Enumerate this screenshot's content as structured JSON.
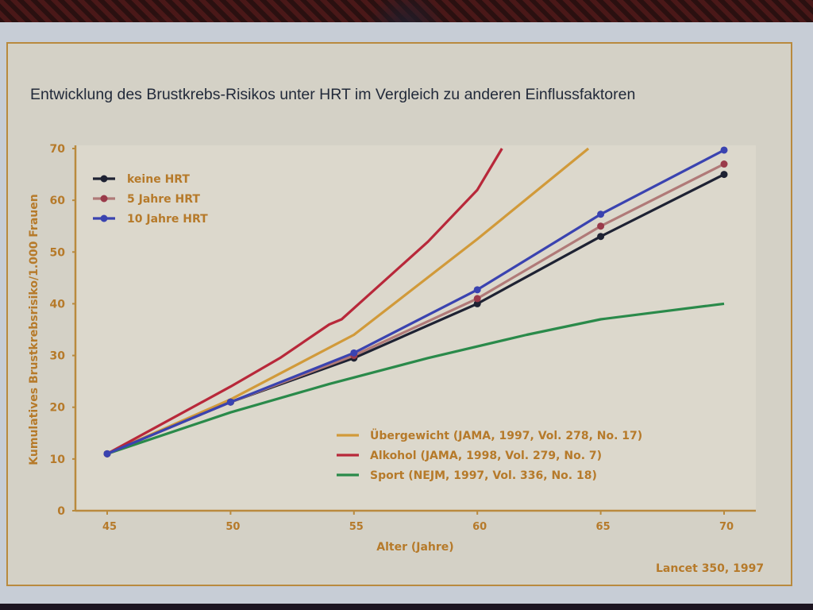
{
  "title": "Entwicklung des Brustkrebs-Risikos unter HRT im Vergleich zu anderen Einflussfaktoren",
  "source": "Lancet 350, 1997",
  "colors": {
    "keine_hrt": "#1e2233",
    "5_jahre_hrt": "#b07a78",
    "5_jahre_hrt_marker": "#9a3a4a",
    "10_jahre_hrt": "#3a43b0",
    "uebergewicht": "#d19a3a",
    "alkohol": "#b8283a",
    "sport": "#2a8a4a",
    "axis": "#b98a3e",
    "label": "#b67a2a",
    "plot_bg": "#dcd8cc"
  },
  "chart_data": {
    "type": "line",
    "title": "Entwicklung des Brustkrebs-Risikos unter HRT im Vergleich zu anderen Einflussfaktoren",
    "xlabel": "Alter (Jahre)",
    "ylabel": "Kumulatives Brustkrebsrisiko/1.000 Frauen",
    "xlim": [
      45,
      70
    ],
    "ylim": [
      0,
      70
    ],
    "xticks": [
      45,
      50,
      55,
      60,
      65,
      70
    ],
    "yticks": [
      0,
      10,
      20,
      30,
      40,
      50,
      60,
      70
    ],
    "grid": false,
    "legend_position": "upper-left (HRT series) and lower-right (other factors)",
    "series": [
      {
        "name": "keine HRT",
        "markers": true,
        "x": [
          45,
          50,
          55,
          60,
          65,
          70
        ],
        "y": [
          11,
          21,
          29.5,
          40,
          53,
          65
        ]
      },
      {
        "name": "5 Jahre HRT",
        "markers": true,
        "x": [
          45,
          50,
          55,
          60,
          65,
          70
        ],
        "y": [
          11,
          21,
          30,
          41,
          55,
          67
        ]
      },
      {
        "name": "10 Jahre HRT",
        "markers": true,
        "x": [
          45,
          50,
          55,
          60,
          65,
          70
        ],
        "y": [
          11,
          21,
          30.5,
          42.7,
          57.3,
          69.7
        ]
      },
      {
        "name": "Übergewicht (JAMA, 1997, Vol. 278, No. 17)",
        "markers": false,
        "x": [
          45,
          50,
          55,
          60,
          64.5
        ],
        "y": [
          11,
          21.5,
          34,
          52.5,
          70
        ]
      },
      {
        "name": "Alkohol (JAMA, 1998, Vol. 279, No. 7)",
        "markers": false,
        "x": [
          45,
          50,
          52,
          54,
          54.5,
          58,
          60,
          61
        ],
        "y": [
          11,
          24,
          29.5,
          36,
          37,
          52,
          62,
          70
        ]
      },
      {
        "name": "Sport (NEJM, 1997, Vol. 336, No. 18)",
        "markers": false,
        "x": [
          45,
          50,
          54,
          58,
          62,
          65,
          70
        ],
        "y": [
          11,
          19,
          24.5,
          29.5,
          34,
          37,
          40
        ]
      }
    ]
  },
  "legend_hrt": [
    {
      "label": "keine HRT",
      "color_key": "keine_hrt"
    },
    {
      "label": "5 Jahre HRT",
      "color_key": "5_jahre_hrt"
    },
    {
      "label": "10 Jahre HRT",
      "color_key": "10_jahre_hrt"
    }
  ],
  "legend_factors": [
    {
      "label": "Übergewicht (JAMA, 1997, Vol. 278, No. 17)",
      "color_key": "uebergewicht"
    },
    {
      "label": "Alkohol (JAMA, 1998, Vol. 279, No. 7)",
      "color_key": "alkohol"
    },
    {
      "label": "Sport (NEJM, 1997, Vol. 336, No. 18)",
      "color_key": "sport"
    }
  ]
}
